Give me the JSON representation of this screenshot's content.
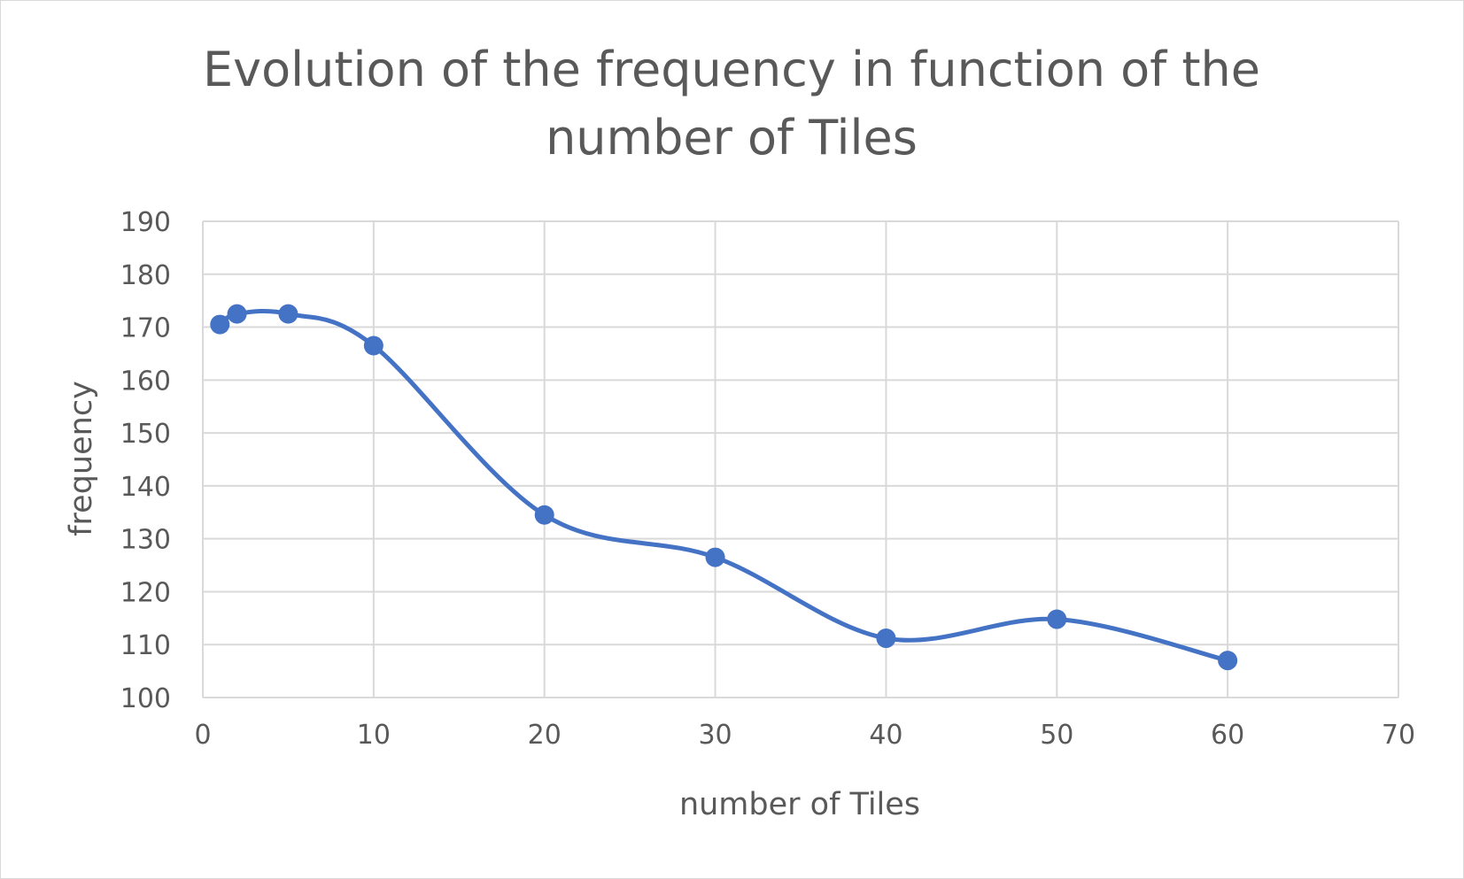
{
  "chart_data": {
    "type": "scatter",
    "title_lines": [
      "Evolution of the frequency in function of the",
      "number of Tiles"
    ],
    "xlabel": "number of Tiles",
    "ylabel": "frequency",
    "xlim": [
      0,
      70
    ],
    "ylim": [
      100,
      190
    ],
    "x_ticks": [
      0,
      10,
      20,
      30,
      40,
      50,
      60,
      70
    ],
    "y_ticks": [
      100,
      110,
      120,
      130,
      140,
      150,
      160,
      170,
      180,
      190
    ],
    "grid": true,
    "legend": "none",
    "smooth_line": true,
    "series_color": "#4472c4",
    "series": [
      {
        "x": [
          1,
          2,
          5,
          10,
          20,
          30,
          40,
          50,
          60
        ],
        "y": [
          170.5,
          172.5,
          172.5,
          166.5,
          134.5,
          126.5,
          111.2,
          114.8,
          107
        ]
      }
    ]
  }
}
